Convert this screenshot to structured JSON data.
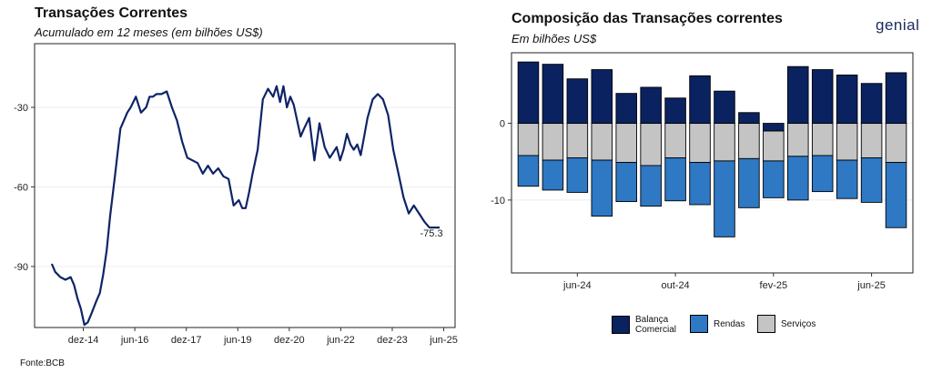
{
  "left_chart": {
    "title": "Transações Correntes",
    "subtitle": "Acumulado em 12 meses (em bilhões US$)",
    "source": "Fonte:BCB"
  },
  "right_chart": {
    "title": "Composição das Transações correntes",
    "subtitle": "Em bilhões US$",
    "logo": "genial"
  },
  "colors": {
    "line": "#0d2466",
    "balanca": "#0a2260",
    "rendas": "#2e78c4",
    "servicos": "#c4c4c4"
  },
  "chart_data": [
    {
      "type": "line",
      "title": "Transações Correntes",
      "subtitle": "Acumulado em 12 meses (em bilhões US$)",
      "x_tick_labels": [
        "dez-14",
        "jun-16",
        "dez-17",
        "jun-19",
        "dez-20",
        "jun-22",
        "dez-23",
        "jun-25"
      ],
      "x_tick_values": [
        2014.92,
        2016.42,
        2017.92,
        2019.42,
        2020.92,
        2022.42,
        2023.92,
        2025.42
      ],
      "y_tick_labels": [
        "-30",
        "-60",
        "-90"
      ],
      "y_tick_values": [
        -30,
        -60,
        -90
      ],
      "xlim": [
        2013.5,
        2025.75
      ],
      "ylim": [
        -113,
        -6
      ],
      "annotation": "-75.3",
      "series": [
        {
          "x": [
            2014.0,
            2014.1,
            2014.25,
            2014.4,
            2014.55,
            2014.65,
            2014.75,
            2014.85,
            2014.95,
            2015.05,
            2015.15,
            2015.3,
            2015.4,
            2015.5,
            2015.6,
            2015.7,
            2015.85,
            2016.0,
            2016.1,
            2016.2,
            2016.3,
            2016.45,
            2016.6,
            2016.75,
            2016.85,
            2016.95,
            2017.05,
            2017.2,
            2017.35,
            2017.5,
            2017.65,
            2017.8,
            2017.95,
            2018.1,
            2018.25,
            2018.4,
            2018.55,
            2018.7,
            2018.85,
            2019.0,
            2019.15,
            2019.3,
            2019.45,
            2019.55,
            2019.65,
            2019.75,
            2019.85,
            2020.0,
            2020.15,
            2020.3,
            2020.45,
            2020.55,
            2020.65,
            2020.75,
            2020.85,
            2020.95,
            2021.05,
            2021.15,
            2021.25,
            2021.35,
            2021.5,
            2021.65,
            2021.8,
            2021.95,
            2022.1,
            2022.2,
            2022.3,
            2022.4,
            2022.5,
            2022.6,
            2022.7,
            2022.8,
            2022.9,
            2023.0,
            2023.1,
            2023.2,
            2023.35,
            2023.5,
            2023.65,
            2023.8,
            2023.95,
            2024.1,
            2024.25,
            2024.4,
            2024.55,
            2024.7,
            2024.85,
            2025.0,
            2025.15,
            2025.3
          ],
          "y": [
            -89,
            -92,
            -94,
            -95,
            -94,
            -97,
            -102,
            -106,
            -112,
            -111,
            -108,
            -103,
            -100,
            -93,
            -84,
            -71,
            -55,
            -38,
            -35,
            -32,
            -30,
            -26,
            -32,
            -30,
            -26,
            -26,
            -25,
            -25,
            -24,
            -30,
            -35,
            -43,
            -49,
            -50,
            -51,
            -55,
            -52,
            -55,
            -53,
            -56,
            -57,
            -67,
            -65,
            -68,
            -68,
            -62,
            -55,
            -46,
            -27,
            -23,
            -26,
            -22,
            -28,
            -22,
            -30,
            -26,
            -29,
            -35,
            -41,
            -38,
            -34,
            -50,
            -36,
            -45,
            -49,
            -47,
            -45,
            -50,
            -46,
            -40,
            -44,
            -46,
            -44,
            -48,
            -41,
            -34,
            -27,
            -25,
            -27,
            -33,
            -46,
            -55,
            -64,
            -70,
            -67,
            -70,
            -73,
            -75.3,
            -75.3,
            -75.3
          ]
        }
      ]
    },
    {
      "type": "bar",
      "stacked": true,
      "title": "Composição das Transações correntes",
      "subtitle": "Em bilhões US$",
      "x_tick_labels": [
        "jun-24",
        "out-24",
        "fev-25",
        "jun-25"
      ],
      "x_tick_indices": [
        2,
        6,
        10,
        14
      ],
      "y_tick_labels": [
        "0",
        "-10"
      ],
      "y_tick_values": [
        0,
        -10
      ],
      "ylim": [
        -19.5,
        9.2
      ],
      "legend_position": "bottom",
      "categories": [
        "abr-24",
        "mai-24",
        "jun-24",
        "jul-24",
        "ago-24",
        "set-24",
        "out-24",
        "nov-24",
        "dez-24",
        "jan-25",
        "fev-25",
        "mar-25",
        "abr-25",
        "mai-25",
        "jun-25",
        "jul-25"
      ],
      "series": [
        {
          "name": "Balança Comercial",
          "values": [
            8.0,
            7.7,
            5.8,
            7.0,
            3.9,
            4.7,
            3.3,
            6.2,
            4.2,
            1.4,
            -1.0,
            7.4,
            7.0,
            6.3,
            5.2,
            6.6
          ]
        },
        {
          "name": "Rendas",
          "values": [
            -4.0,
            -3.9,
            -4.5,
            -7.3,
            -5.1,
            -5.3,
            -5.6,
            -5.5,
            -9.9,
            -6.4,
            -4.8,
            -5.7,
            -4.7,
            -5.0,
            -5.8,
            -8.5
          ]
        },
        {
          "name": "Serviços",
          "values": [
            -4.2,
            -4.8,
            -4.5,
            -4.8,
            -5.1,
            -5.5,
            -4.5,
            -5.1,
            -4.9,
            -4.6,
            -3.9,
            -4.3,
            -4.2,
            -4.8,
            -4.5,
            -5.1
          ]
        }
      ]
    }
  ]
}
